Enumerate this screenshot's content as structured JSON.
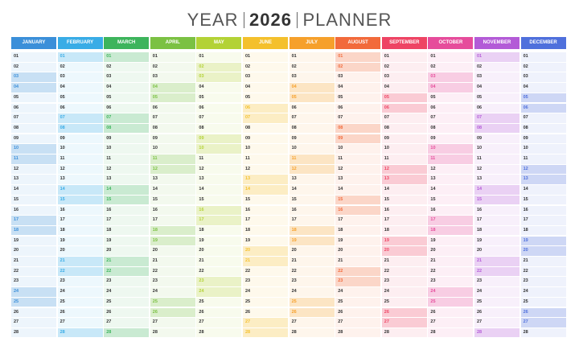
{
  "header": {
    "left": "YEAR",
    "year": "2026",
    "right": "PLANNER"
  },
  "days": [
    "01",
    "02",
    "03",
    "04",
    "05",
    "06",
    "07",
    "08",
    "09",
    "10",
    "11",
    "12",
    "13",
    "14",
    "15",
    "16",
    "17",
    "18",
    "19",
    "20",
    "21",
    "22",
    "23",
    "24",
    "25",
    "26",
    "27",
    "28"
  ],
  "months": [
    {
      "name": "JANUARY",
      "color": "#3b8fd9"
    },
    {
      "name": "FEBRUARY",
      "color": "#39ace6"
    },
    {
      "name": "MARCH",
      "color": "#3db45c"
    },
    {
      "name": "APRIL",
      "color": "#7bc143"
    },
    {
      "name": "MAY",
      "color": "#b3d236"
    },
    {
      "name": "JUNE",
      "color": "#f4c02c"
    },
    {
      "name": "JULY",
      "color": "#f6a02b"
    },
    {
      "name": "AUGUST",
      "color": "#f26a3b"
    },
    {
      "name": "SEPTEMBER",
      "color": "#ee4464"
    },
    {
      "name": "OCTOBER",
      "color": "#e64c9b"
    },
    {
      "name": "NOVEMBER",
      "color": "#b35bd7"
    },
    {
      "name": "DECEMBER",
      "color": "#4f70dc"
    }
  ]
}
